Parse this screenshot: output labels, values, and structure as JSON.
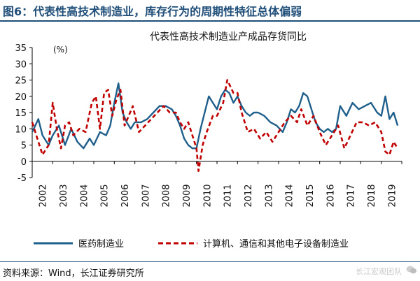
{
  "figure": {
    "header": "图6：代表性高技术制造业，库存行为的周期性特征总体偏弱",
    "source": "资料来源：Wind，长江证券研究所",
    "watermark": "长江宏观团队"
  },
  "colors": {
    "series1": "#1f5f8b",
    "series2": "#c00000",
    "header": "#1f4e79"
  },
  "chart_data": {
    "type": "line",
    "title": "代表性高技术制造业产成品存货同比",
    "unit_label": "(%)",
    "ylim": [
      -5,
      35
    ],
    "yticks": [
      -5,
      0,
      5,
      10,
      15,
      20,
      25,
      30,
      35
    ],
    "xlim": [
      2002.0,
      2020.0
    ],
    "xticks": [
      "2002",
      "2003",
      "2004",
      "2005",
      "2006",
      "2007",
      "2008",
      "2009",
      "2010",
      "2011",
      "2012",
      "2013",
      "2014",
      "2015",
      "2016",
      "2017",
      "2018",
      "2019"
    ],
    "grid": false,
    "legend": "bottom",
    "series": [
      {
        "name": "医药制造业",
        "style": "solid",
        "x": [
          2002.0,
          2002.3,
          2002.5,
          2002.8,
          2003.0,
          2003.3,
          2003.6,
          2003.9,
          2004.2,
          2004.5,
          2004.8,
          2005.0,
          2005.3,
          2005.6,
          2005.8,
          2006.0,
          2006.2,
          2006.4,
          2006.6,
          2006.8,
          2007.0,
          2007.3,
          2007.6,
          2007.9,
          2008.2,
          2008.5,
          2008.8,
          2009.0,
          2009.2,
          2009.4,
          2009.6,
          2009.8,
          2010.0,
          2010.2,
          2010.4,
          2010.6,
          2010.8,
          2011.0,
          2011.2,
          2011.4,
          2011.6,
          2011.8,
          2012.0,
          2012.2,
          2012.4,
          2012.6,
          2012.8,
          2013.0,
          2013.3,
          2013.6,
          2013.9,
          2014.2,
          2014.4,
          2014.6,
          2014.8,
          2015.0,
          2015.2,
          2015.4,
          2015.6,
          2015.8,
          2016.0,
          2016.2,
          2016.4,
          2016.6,
          2016.8,
          2017.0,
          2017.3,
          2017.6,
          2017.9,
          2018.2,
          2018.5,
          2018.8,
          2019.0,
          2019.2,
          2019.4,
          2019.6,
          2019.8
        ],
        "values": [
          9,
          13,
          8,
          5,
          8,
          11,
          5,
          10,
          6,
          4,
          7,
          5,
          9,
          8,
          11,
          18,
          24,
          15,
          12,
          10,
          12,
          12,
          13,
          15,
          17,
          17,
          16,
          14,
          11,
          7,
          5,
          4,
          4,
          10,
          15,
          20,
          18,
          16,
          20,
          22,
          21,
          18,
          20,
          17,
          15,
          14,
          15,
          15,
          14,
          12,
          11,
          9,
          12,
          16,
          15,
          17,
          21,
          20,
          16,
          12,
          10,
          9,
          10,
          9,
          10,
          17,
          14,
          18,
          16,
          17,
          18,
          15,
          14,
          20,
          13,
          15,
          11
        ]
      },
      {
        "name": "计算机、通信和其他电子设备制造业",
        "style": "dashed",
        "x": [
          2002.0,
          2002.3,
          2002.5,
          2002.8,
          2003.0,
          2003.2,
          2003.4,
          2003.6,
          2003.8,
          2004.0,
          2004.3,
          2004.6,
          2004.9,
          2005.1,
          2005.3,
          2005.5,
          2005.7,
          2005.9,
          2006.1,
          2006.3,
          2006.5,
          2006.7,
          2006.9,
          2007.2,
          2007.5,
          2007.8,
          2008.1,
          2008.4,
          2008.7,
          2009.0,
          2009.2,
          2009.4,
          2009.6,
          2009.8,
          2010.0,
          2010.1,
          2010.3,
          2010.5,
          2010.8,
          2011.0,
          2011.3,
          2011.5,
          2011.8,
          2012.0,
          2012.2,
          2012.5,
          2012.8,
          2013.1,
          2013.4,
          2013.7,
          2014.0,
          2014.3,
          2014.6,
          2014.9,
          2015.1,
          2015.4,
          2015.7,
          2016.0,
          2016.3,
          2016.6,
          2016.9,
          2017.2,
          2017.5,
          2017.8,
          2018.1,
          2018.4,
          2018.7,
          2019.0,
          2019.2,
          2019.4,
          2019.6,
          2019.8
        ],
        "values": [
          12,
          6,
          2,
          5,
          18,
          10,
          4,
          11,
          12,
          8,
          10,
          9,
          18,
          20,
          10,
          21,
          22,
          14,
          19,
          22,
          11,
          14,
          17,
          9,
          11,
          13,
          15,
          17,
          15,
          15,
          12,
          10,
          12,
          8,
          4,
          -3,
          5,
          9,
          14,
          14,
          18,
          25,
          21,
          21,
          15,
          9,
          10,
          7,
          9,
          6,
          9,
          12,
          14,
          12,
          16,
          11,
          14,
          9,
          5,
          8,
          11,
          4,
          8,
          12,
          12,
          11,
          12,
          9,
          3,
          2,
          6,
          4
        ]
      }
    ]
  }
}
